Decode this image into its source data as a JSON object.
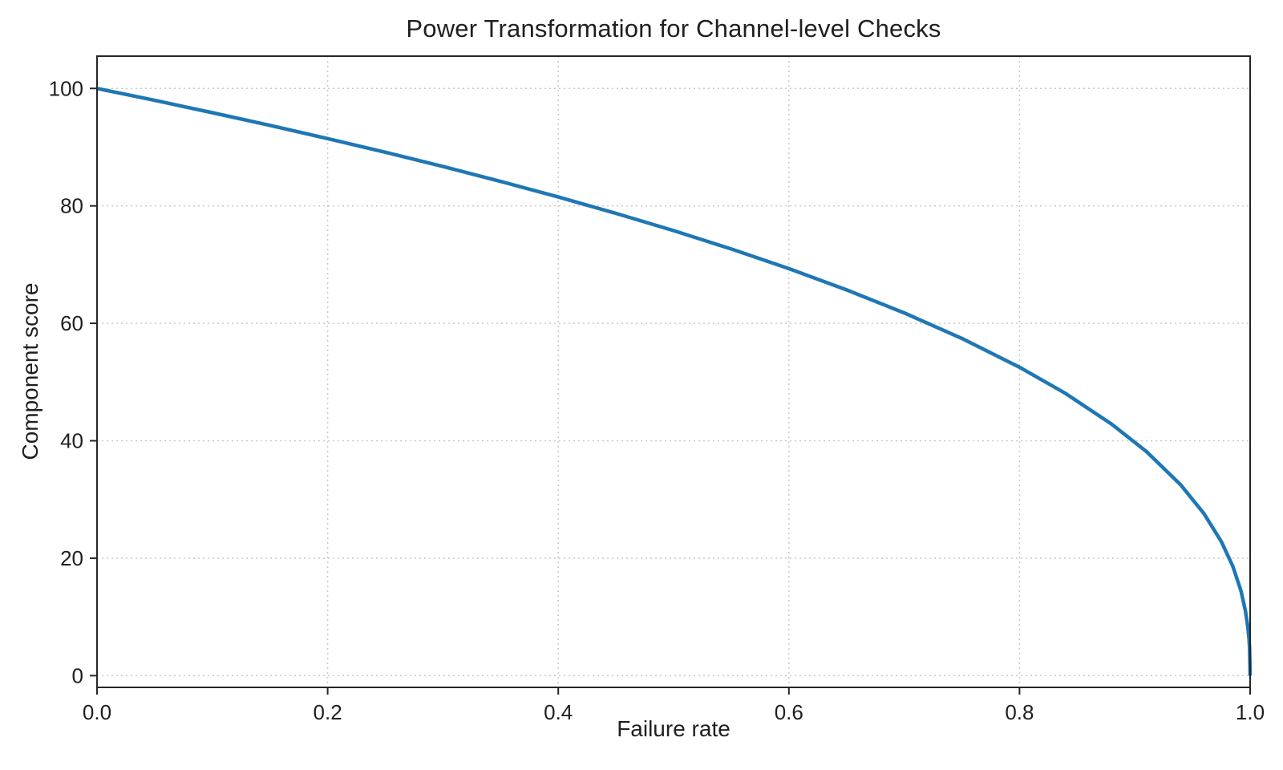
{
  "chart": {
    "title": "Power Transformation for Channel-level Checks",
    "xlabel": "Failure rate",
    "ylabel": "Component score"
  },
  "chart_data": {
    "type": "line",
    "title": "Power Transformation for Channel-level Checks",
    "xlabel": "Failure rate",
    "ylabel": "Component score",
    "function": "y = 100 * (1 - x)^0.4",
    "scale": 100,
    "exponent": 0.4,
    "xlim": [
      0,
      1
    ],
    "ylim": [
      -2,
      105.5
    ],
    "xticks": [
      0,
      0.2,
      0.4,
      0.6,
      0.8,
      1.0
    ],
    "xtick_labels": [
      "0.0",
      "0.2",
      "0.4",
      "0.6",
      "0.8",
      "1.0"
    ],
    "yticks": [
      0,
      20,
      40,
      60,
      80,
      100
    ],
    "ytick_labels": [
      "0",
      "20",
      "40",
      "60",
      "80",
      "100"
    ],
    "grid": true,
    "grid_style": "dotted",
    "legend": false,
    "line_color": "#1f77b4",
    "line_width": 4.5,
    "x": [
      0,
      0.02,
      0.05,
      0.1,
      0.15,
      0.2,
      0.25,
      0.3,
      0.35,
      0.4,
      0.45,
      0.5,
      0.55,
      0.6,
      0.65,
      0.7,
      0.75,
      0.8,
      0.84,
      0.88,
      0.91,
      0.94,
      0.96,
      0.975,
      0.985,
      0.992,
      0.996,
      0.998,
      0.999,
      0.9995,
      1.0
    ],
    "y": [
      100,
      99.19,
      97.97,
      95.87,
      93.71,
      91.46,
      89.13,
      86.7,
      84.17,
      81.51,
      78.73,
      75.79,
      72.66,
      69.31,
      65.7,
      61.78,
      57.43,
      52.53,
      48.05,
      42.82,
      38.17,
      32.45,
      27.59,
      22.86,
      18.64,
      14.49,
      10.99,
      8.33,
      6.31,
      4.78,
      0
    ]
  }
}
